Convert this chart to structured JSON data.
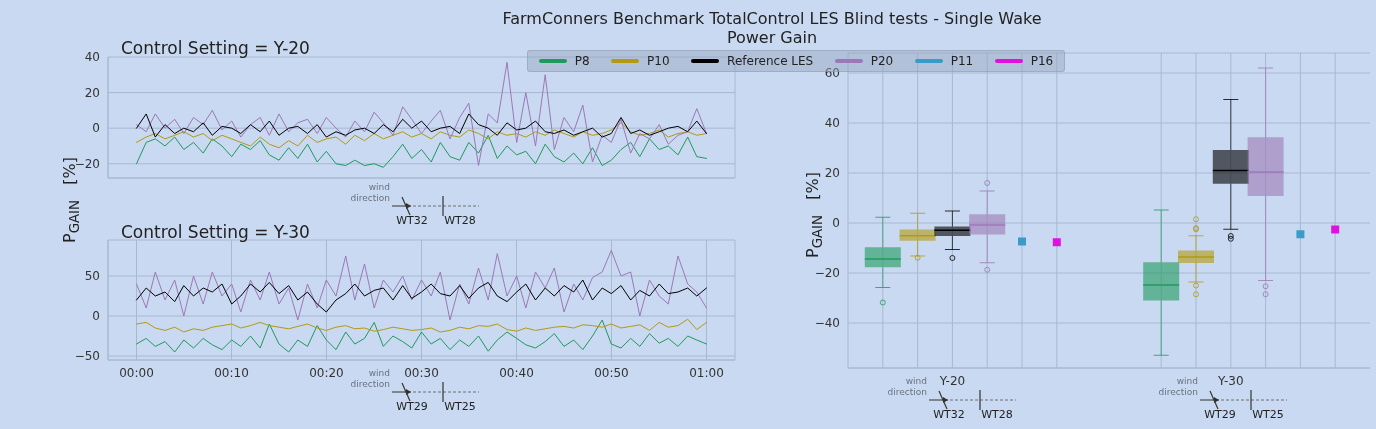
{
  "chart_data": [
    {
      "type": "line",
      "title": "FarmConners Benchmark TotalControl LES Blind tests - Single Wake\nPower Gain",
      "subtitle": "Control Setting = Y-20",
      "ylabel": "P$_{GAIN}$   [%]",
      "x": [
        0,
        0.017,
        0.033,
        0.05,
        0.067,
        0.083,
        0.1,
        0.117,
        0.133,
        0.15,
        0.167,
        0.183,
        0.2,
        0.217,
        0.233,
        0.25,
        0.267,
        0.283,
        0.3,
        0.317,
        0.333,
        0.35,
        0.367,
        0.383,
        0.4,
        0.417,
        0.433,
        0.45,
        0.467,
        0.483,
        0.5,
        0.517,
        0.533,
        0.55,
        0.567,
        0.583,
        0.6,
        0.617,
        0.633,
        0.65,
        0.667,
        0.683,
        0.7,
        0.717,
        0.733,
        0.75,
        0.767,
        0.783,
        0.8,
        0.817,
        0.833,
        0.85,
        0.867,
        0.883,
        0.9,
        0.917,
        0.933,
        0.95,
        0.967,
        0.983,
        1
      ],
      "xlim": [
        -0.05,
        1.05
      ],
      "xticks": [
        {
          "value": 0,
          "label": null
        },
        {
          "value": 0.1667,
          "label": null
        },
        {
          "value": 0.3333,
          "label": null
        },
        {
          "value": 0.5,
          "label": null
        },
        {
          "value": 0.6667,
          "label": null
        },
        {
          "value": 0.8333,
          "label": null
        },
        {
          "value": 1,
          "label": null
        }
      ],
      "ylim": [
        -28,
        40
      ],
      "yticks": [
        -20,
        0,
        20,
        40
      ],
      "grid": true,
      "tick_labels": "y",
      "legend": "top",
      "series": [
        {
          "name": "P8",
          "color": "#1f9a5e",
          "values": [
            -20,
            -8,
            -6,
            -10,
            -5,
            -12,
            -8,
            -14,
            -6,
            -10,
            -16,
            -9,
            -12,
            -7,
            -15,
            -18,
            -11,
            -17,
            -9,
            -19,
            -13,
            -20,
            -21,
            -18,
            -21,
            -20,
            -22,
            -16,
            -9,
            -17,
            -12,
            -19,
            -8,
            -16,
            -18,
            -8,
            -14,
            -4,
            -17,
            -10,
            -15,
            -13,
            -20,
            -9,
            -16,
            -19,
            -14,
            -20,
            -11,
            -21,
            -18,
            -12,
            -8,
            -16,
            -6,
            -12,
            -10,
            -15,
            -5,
            -16,
            -17
          ]
        },
        {
          "name": "P10",
          "color": "#b39a10",
          "values": [
            -8,
            -5,
            -3,
            -6,
            -4,
            -2,
            -5,
            -3,
            -7,
            -4,
            -6,
            -8,
            -10,
            -5,
            -9,
            -11,
            -7,
            -10,
            -4,
            -8,
            -6,
            -5,
            -9,
            -4,
            -7,
            -3,
            -6,
            -4,
            -2,
            -5,
            -3,
            -6,
            -2,
            -4,
            -5,
            -1,
            -3,
            -6,
            -2,
            -4,
            -3,
            -5,
            -2,
            -4,
            -1,
            -3,
            -5,
            -2,
            -4,
            -3,
            -1,
            3,
            -2,
            -4,
            -3,
            -1,
            -5,
            -3,
            -2,
            -4,
            -3
          ]
        },
        {
          "name": "P20",
          "color": "#9c78b6",
          "values": [
            2,
            -2,
            8,
            0,
            5,
            -3,
            6,
            2,
            10,
            -1,
            4,
            -5,
            2,
            6,
            -4,
            8,
            -2,
            3,
            5,
            -3,
            6,
            0,
            -5,
            4,
            -2,
            9,
            3,
            -4,
            12,
            5,
            -3,
            4,
            10,
            -6,
            6,
            14,
            -21,
            8,
            3,
            37,
            -8,
            20,
            -10,
            30,
            -12,
            6,
            -2,
            13,
            -19,
            -4,
            -8,
            5,
            -14,
            -3,
            -6,
            2,
            -9,
            -4,
            -2,
            11,
            -3
          ]
        },
        {
          "name": "Reference LES",
          "color": "#000000",
          "values": [
            0,
            8,
            -5,
            2,
            -3,
            0,
            -2,
            3,
            -4,
            1,
            0,
            -3,
            2,
            -2,
            4,
            -4,
            0,
            1,
            -3,
            2,
            -5,
            -2,
            -4,
            -1,
            0,
            -3,
            2,
            -2,
            5,
            0,
            4,
            -2,
            0,
            1,
            -3,
            8,
            2,
            0,
            -4,
            3,
            -1,
            0,
            4,
            -2,
            -3,
            -1,
            -4,
            -2,
            0,
            -5,
            -3,
            6,
            -3,
            -1,
            -4,
            -2,
            0,
            1,
            -2,
            4,
            -3
          ]
        }
      ],
      "annotations": [
        "wind direction",
        "WT32",
        "WT28"
      ]
    },
    {
      "type": "line",
      "subtitle": "Control Setting = Y-30",
      "x": [
        0,
        0.017,
        0.033,
        0.05,
        0.067,
        0.083,
        0.1,
        0.117,
        0.133,
        0.15,
        0.167,
        0.183,
        0.2,
        0.217,
        0.233,
        0.25,
        0.267,
        0.283,
        0.3,
        0.317,
        0.333,
        0.35,
        0.367,
        0.383,
        0.4,
        0.417,
        0.433,
        0.45,
        0.467,
        0.483,
        0.5,
        0.517,
        0.533,
        0.55,
        0.567,
        0.583,
        0.6,
        0.617,
        0.633,
        0.65,
        0.667,
        0.683,
        0.7,
        0.717,
        0.733,
        0.75,
        0.767,
        0.783,
        0.8,
        0.817,
        0.833,
        0.85,
        0.867,
        0.883,
        0.9,
        0.917,
        0.933,
        0.95,
        0.967,
        0.983,
        1
      ],
      "xlim": [
        -0.05,
        1.05
      ],
      "xticks": [
        {
          "value": 0,
          "label": "00:00"
        },
        {
          "value": 0.1667,
          "label": "00:10"
        },
        {
          "value": 0.3333,
          "label": "00:20"
        },
        {
          "value": 0.5,
          "label": "00:30"
        },
        {
          "value": 0.6667,
          "label": "00:40"
        },
        {
          "value": 0.8333,
          "label": "00:50"
        },
        {
          "value": 1,
          "label": "01:00"
        }
      ],
      "ylim": [
        -55,
        95
      ],
      "yticks": [
        -50,
        0,
        50
      ],
      "grid": true,
      "legend": "top",
      "series": [
        {
          "name": "P8",
          "color": "#1f9a5e",
          "values": [
            -35,
            -28,
            -38,
            -32,
            -45,
            -30,
            -40,
            -28,
            -36,
            -42,
            -30,
            -38,
            -25,
            -40,
            -10,
            -35,
            -45,
            -30,
            -38,
            -12,
            -30,
            -42,
            -20,
            -35,
            -28,
            -8,
            -38,
            -25,
            -32,
            -40,
            -20,
            -35,
            -28,
            -42,
            -30,
            -38,
            -25,
            -44,
            -30,
            -20,
            -28,
            -36,
            -40,
            -32,
            -22,
            -38,
            -30,
            -42,
            -25,
            -5,
            -35,
            -40,
            -28,
            -38,
            -22,
            -34,
            -28,
            -38,
            -25,
            -30,
            -35
          ]
        },
        {
          "name": "P10",
          "color": "#b39a10",
          "values": [
            -10,
            -8,
            -15,
            -18,
            -14,
            -20,
            -16,
            -18,
            -14,
            -12,
            -10,
            -15,
            -12,
            -8,
            -12,
            -14,
            -16,
            -13,
            -10,
            -15,
            -18,
            -14,
            -12,
            -16,
            -15,
            -19,
            -17,
            -14,
            -16,
            -18,
            -17,
            -15,
            -20,
            -18,
            -14,
            -16,
            -12,
            -13,
            -10,
            -17,
            -19,
            -15,
            -18,
            -16,
            -14,
            -13,
            -15,
            -11,
            -12,
            -14,
            -10,
            -15,
            -13,
            -11,
            -18,
            -8,
            -14,
            -12,
            -4,
            -17,
            -8
          ]
        },
        {
          "name": "P20",
          "color": "#9c78b6",
          "values": [
            40,
            10,
            55,
            20,
            45,
            0,
            50,
            15,
            55,
            25,
            40,
            5,
            45,
            20,
            55,
            15,
            35,
            -5,
            40,
            10,
            45,
            25,
            75,
            20,
            65,
            10,
            45,
            30,
            50,
            20,
            45,
            25,
            55,
            -5,
            40,
            15,
            60,
            20,
            78,
            25,
            50,
            10,
            55,
            35,
            60,
            5,
            40,
            20,
            48,
            55,
            82,
            50,
            55,
            0,
            45,
            25,
            15,
            75,
            40,
            30,
            10
          ]
        },
        {
          "name": "Reference LES",
          "color": "#000000",
          "values": [
            20,
            35,
            25,
            30,
            18,
            38,
            25,
            35,
            30,
            40,
            15,
            25,
            40,
            30,
            42,
            28,
            38,
            20,
            30,
            15,
            5,
            20,
            28,
            40,
            25,
            32,
            35,
            20,
            38,
            22,
            30,
            40,
            28,
            25,
            38,
            22,
            35,
            42,
            25,
            18,
            30,
            40,
            20,
            35,
            25,
            38,
            30,
            45,
            20,
            35,
            28,
            38,
            20,
            32,
            25,
            40,
            28,
            30,
            35,
            25,
            35
          ]
        }
      ],
      "annotations": [
        "wind direction",
        "WT29",
        "WT25"
      ]
    },
    {
      "type": "box",
      "categories": [
        "Y-20",
        "Y-30"
      ],
      "ylabel": "P$_{GAIN}$   [%]",
      "ylim": [
        -58,
        68
      ],
      "yticks": [
        -40,
        -20,
        0,
        20,
        40,
        60
      ],
      "grid": true,
      "legend": "top",
      "series": [
        {
          "name": "P8",
          "color": "#1f9a5e",
          "boxes": [
            {
              "low": -25.8,
              "q1": -17.7,
              "median": -14.4,
              "q3": -9.7,
              "high": 2.3,
              "outliers": [
                -31.8
              ]
            },
            {
              "low": -52.9,
              "q1": -31,
              "median": -24.8,
              "q3": -15.7,
              "high": 5.2
            }
          ]
        },
        {
          "name": "P10",
          "color": "#b39a10",
          "boxes": [
            {
              "low": -13.2,
              "q1": -7.1,
              "median": -5.1,
              "q3": -2.6,
              "high": 3.9,
              "outliers": [
                -13.9
              ]
            },
            {
              "low": -23.6,
              "q1": -16,
              "median": -13.6,
              "q3": -11,
              "high": -5.1,
              "outliers": [
                1.5,
                -2,
                -2.5,
                -25,
                -28.5
              ]
            }
          ]
        },
        {
          "name": "Reference LES",
          "color": "#000000",
          "boxes": [
            {
              "low": -10.6,
              "q1": -5.2,
              "median": -2.9,
              "q3": -1.4,
              "high": 4.8,
              "outliers": [
                -14
              ]
            },
            {
              "low": -2.5,
              "q1": 15.7,
              "median": 21,
              "q3": 29.2,
              "high": 49.4,
              "outliers": [
                -5.2,
                -6.3
              ]
            }
          ]
        },
        {
          "name": "P20",
          "color": "#9c78b6",
          "boxes": [
            {
              "low": -15.9,
              "q1": -4.6,
              "median": -0.8,
              "q3": 3.5,
              "high": 12.8,
              "outliers": [
                16,
                -18.7
              ]
            },
            {
              "low": -23,
              "q1": 10.8,
              "median": 20.4,
              "q3": 34.3,
              "high": 62,
              "outliers": [
                -25.3,
                -28.5
              ]
            }
          ]
        },
        {
          "name": "P11",
          "color": "#3a9ac9",
          "type": "scatter",
          "marker": "square",
          "values": [
            -7.4,
            -4.5
          ]
        },
        {
          "name": "P16",
          "color": "#e010e0",
          "type": "scatter",
          "marker": "square",
          "values": [
            -7.7,
            -2.6
          ]
        }
      ],
      "annotations": [
        "wind direction",
        "WT32",
        "WT28",
        "wind direction",
        "WT29",
        "WT25"
      ]
    }
  ]
}
